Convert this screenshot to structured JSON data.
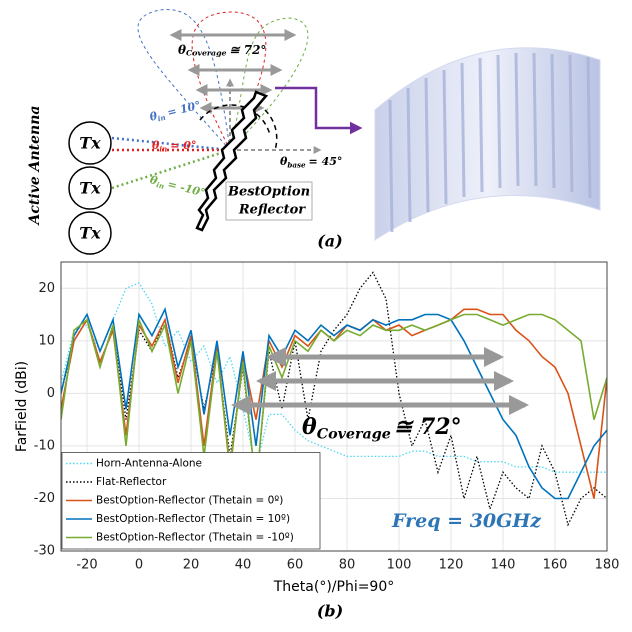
{
  "figure_a": {
    "coverage": {
      "symbol": "θ",
      "subscript": "Coverage",
      "text": "≅ 72°"
    },
    "theta_in": [
      {
        "symbol": "θ",
        "subscript": "in",
        "text": "= 10°",
        "color": "#4472c4"
      },
      {
        "symbol": "θ",
        "subscript": "in",
        "text": "= 0°",
        "color": "#e02020"
      },
      {
        "symbol": "θ",
        "subscript": "in",
        "text": "= -10°",
        "color": "#70ad47"
      }
    ],
    "theta_base": {
      "symbol": "θ",
      "subscript": "base",
      "text": "= 45°"
    },
    "reflector_label": [
      "BestOption",
      "Reflector"
    ],
    "antenna_label": "Active Antenna",
    "tx_labels": [
      "Tx",
      "Tx",
      "Tx"
    ],
    "caption": "(a)"
  },
  "chart_data": {
    "type": "line",
    "caption": "(b)",
    "x_label": "Theta(°)/Phi=90°",
    "y_label": "FarField (dBi)",
    "xlim": [
      -30,
      180
    ],
    "ylim": [
      -30,
      25
    ],
    "xticks": [
      -20,
      0,
      20,
      40,
      60,
      80,
      100,
      120,
      140,
      160,
      180
    ],
    "yticks": [
      -30,
      -20,
      -10,
      0,
      10,
      20
    ],
    "grid": true,
    "legend": "lower-left",
    "annotation": {
      "symbol": "θ",
      "subscript": "Coverage",
      "text": "≅ 72°"
    },
    "frequency": "Freq = 30GHz",
    "x": [
      -30,
      -25,
      -20,
      -15,
      -10,
      -5,
      0,
      5,
      10,
      15,
      20,
      25,
      30,
      35,
      40,
      45,
      50,
      55,
      60,
      65,
      70,
      75,
      80,
      85,
      90,
      95,
      100,
      105,
      110,
      115,
      120,
      125,
      130,
      135,
      140,
      145,
      150,
      155,
      160,
      165,
      170,
      175,
      180
    ],
    "series": [
      {
        "name": "Horn-Antenna-Alone",
        "color": "#4dd8ee",
        "dash": "dotted",
        "values": [
          2,
          12,
          13,
          8,
          14,
          20,
          21,
          17,
          9,
          12,
          6,
          9,
          2,
          7,
          -3,
          -14,
          -4,
          -4,
          -7,
          -9,
          -10,
          -11,
          -12,
          -12,
          -12,
          -12,
          -12,
          -11,
          -11,
          -12,
          -12,
          -12,
          -13,
          -13,
          -13,
          -14,
          -14,
          -14,
          -15,
          -15,
          -15,
          -15,
          -15
        ]
      },
      {
        "name": "Flat-Reflector",
        "color": "#000000",
        "dash": "dotted",
        "values": [
          0,
          10,
          14,
          5,
          13,
          -5,
          12,
          8,
          14,
          3,
          10,
          -3,
          8,
          -12,
          5,
          -18,
          8,
          -3,
          10,
          -5,
          8,
          12,
          15,
          20,
          23,
          18,
          0,
          -10,
          -5,
          -15,
          -8,
          -20,
          -12,
          -22,
          -15,
          -18,
          -20,
          -10,
          -15,
          -25,
          -20,
          -18,
          -20
        ]
      },
      {
        "name": "BestOption-Reflector (Thetain = 0º)",
        "color": "#d95319",
        "dash": "solid",
        "values": [
          -3,
          10,
          14,
          6,
          12,
          -8,
          13,
          9,
          14,
          2,
          11,
          -10,
          9,
          -15,
          7,
          -5,
          10,
          5,
          11,
          9,
          12,
          10,
          13,
          12,
          14,
          12,
          13,
          11,
          12,
          13,
          14,
          16,
          16,
          15,
          15,
          12,
          10,
          7,
          5,
          0,
          -10,
          -20,
          3
        ]
      },
      {
        "name": "BestOption-Reflector (Thetain = 10º)",
        "color": "#0072bd",
        "dash": "solid",
        "values": [
          0,
          11,
          15,
          8,
          14,
          -3,
          15,
          11,
          16,
          5,
          12,
          -4,
          10,
          -8,
          8,
          -10,
          11,
          7,
          12,
          10,
          13,
          11,
          13,
          12,
          14,
          13,
          14,
          14,
          15,
          15,
          14,
          10,
          5,
          0,
          -5,
          -8,
          -14,
          -18,
          -20,
          -20,
          -15,
          -10,
          -7
        ]
      },
      {
        "name": "BestOption-Reflector (Thetain = -10º)",
        "color": "#77ac30",
        "dash": "solid",
        "values": [
          -5,
          12,
          14,
          5,
          13,
          -10,
          14,
          8,
          13,
          0,
          10,
          -12,
          8,
          -14,
          6,
          -18,
          9,
          3,
          10,
          8,
          12,
          10,
          12,
          11,
          13,
          12,
          12,
          13,
          12,
          13,
          14,
          15,
          15,
          14,
          13,
          14,
          15,
          15,
          14,
          12,
          10,
          -5,
          3
        ]
      }
    ]
  }
}
